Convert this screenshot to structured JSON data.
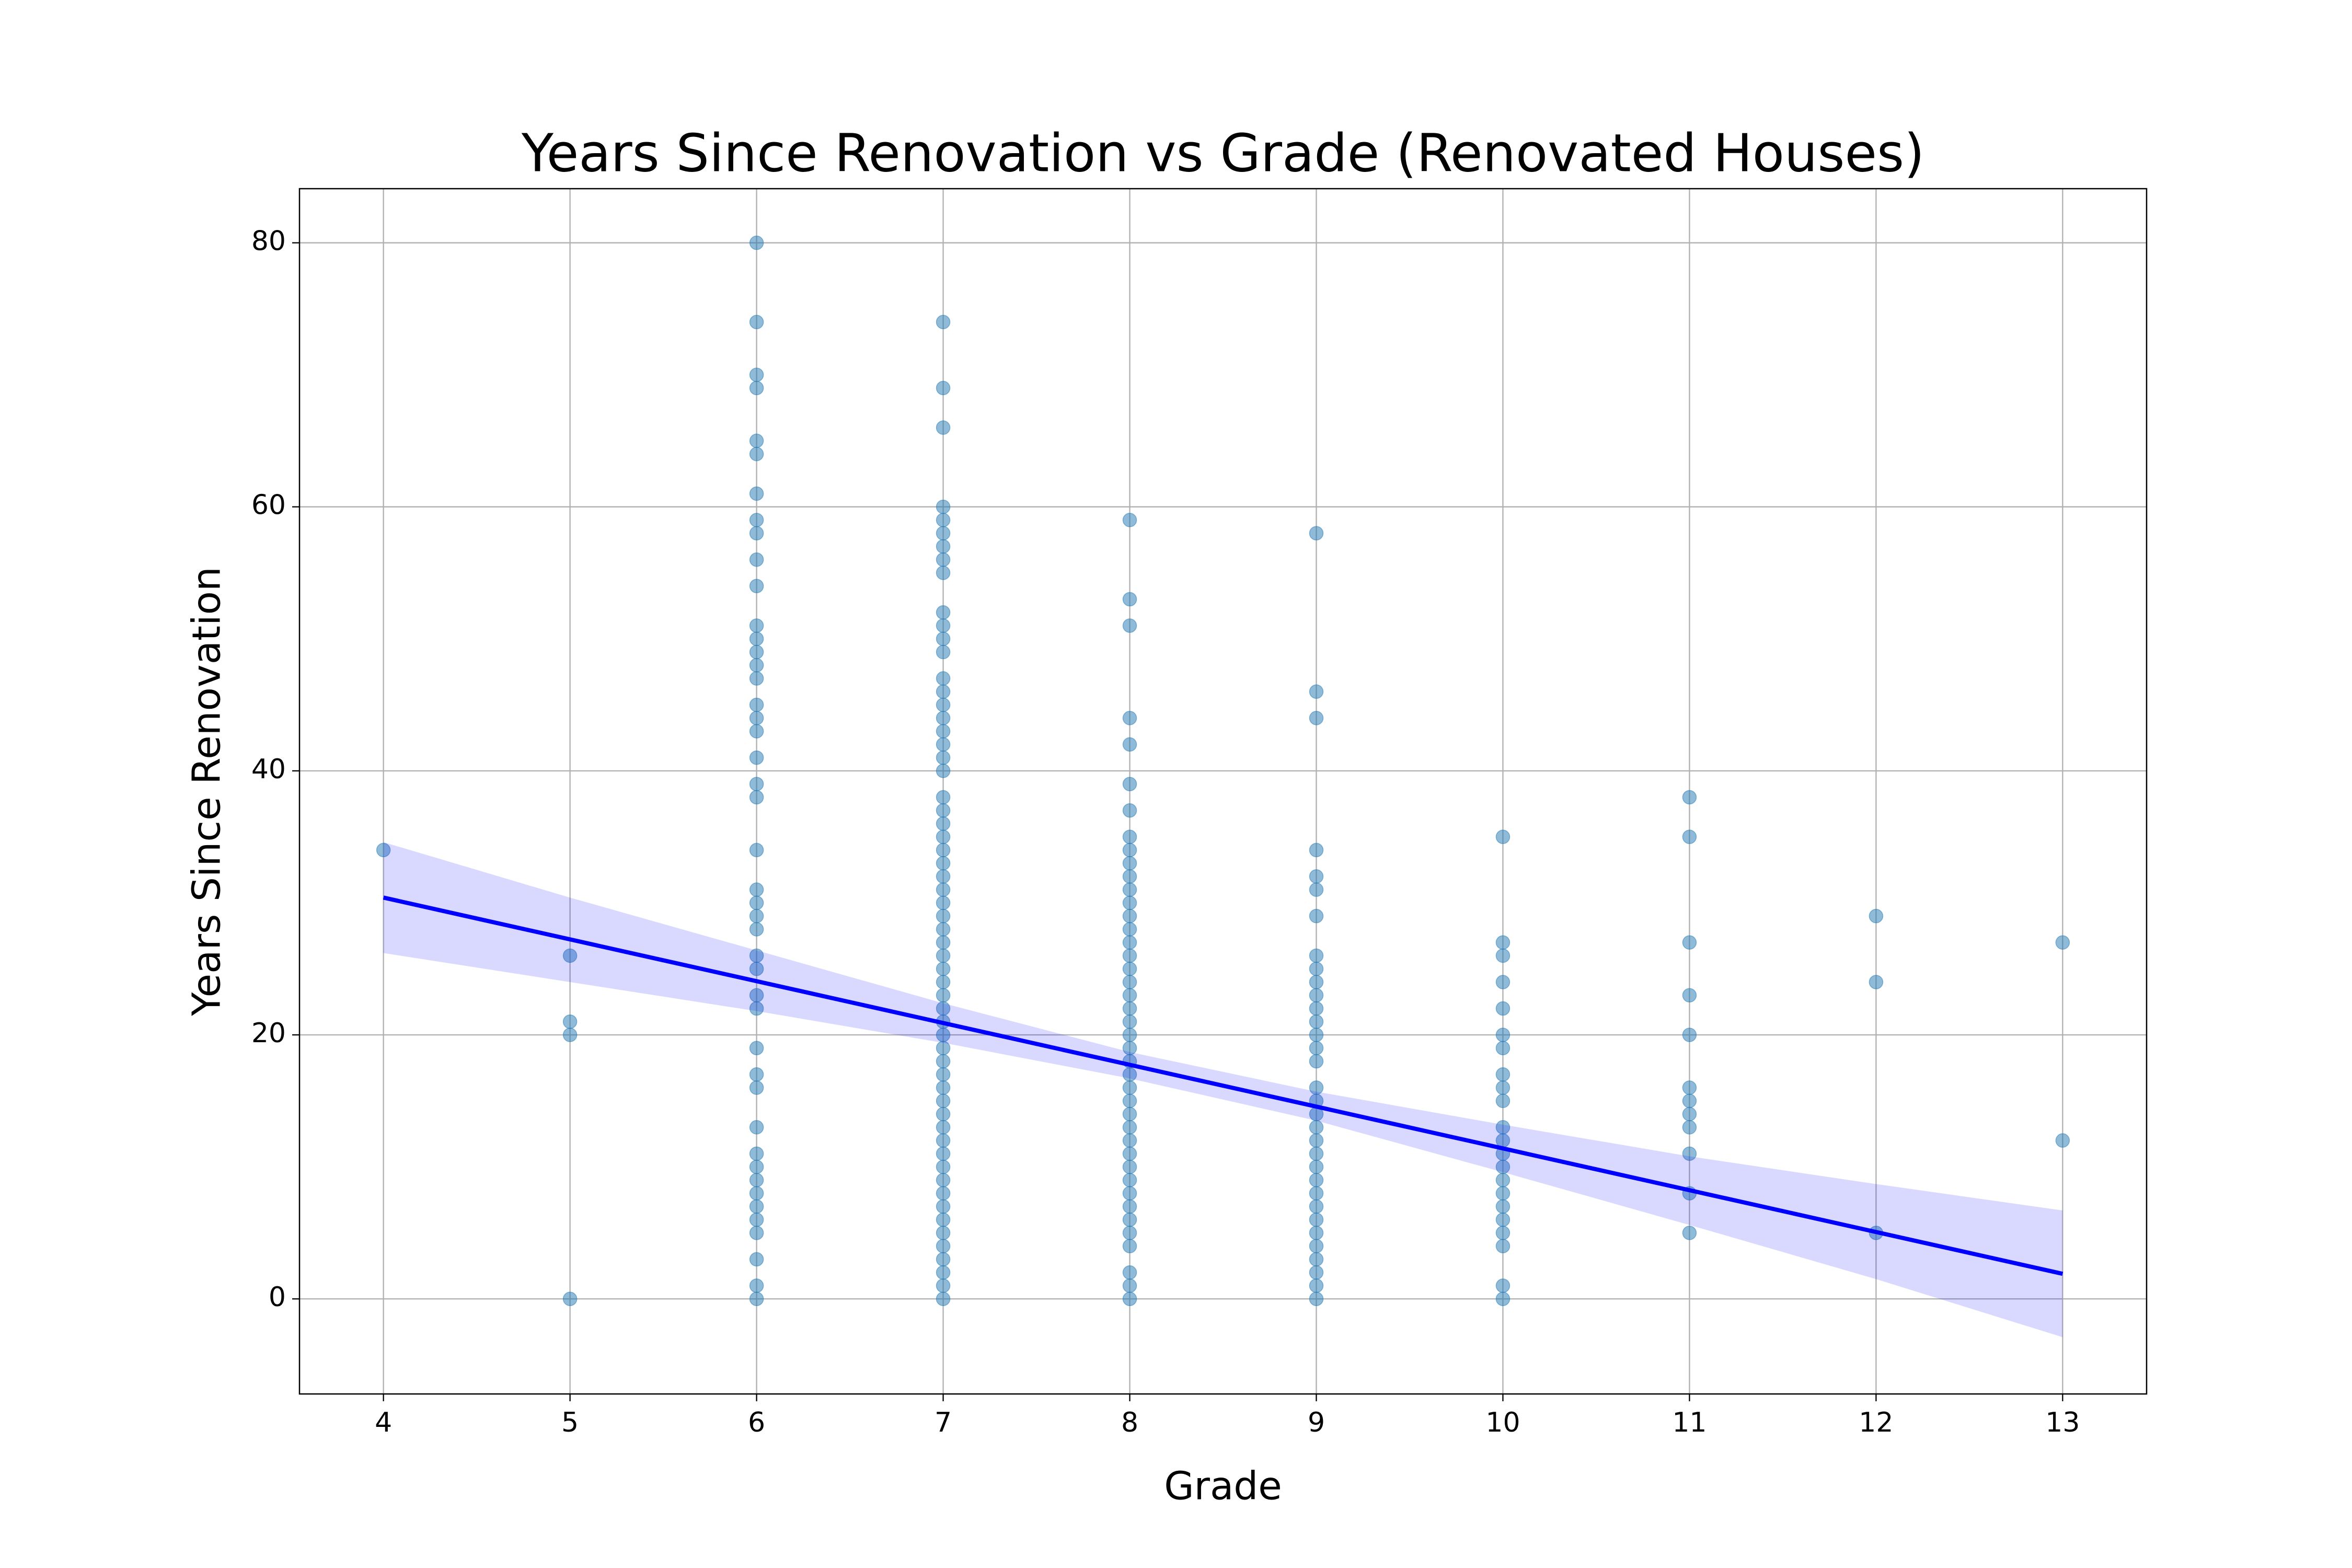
{
  "chart_data": {
    "type": "scatter",
    "title": "Years Since Renovation vs Grade (Renovated Houses)",
    "x_label": "Grade",
    "y_label": "Years Since Renovation",
    "color": "#1f77b4",
    "grid": true,
    "xlim": [
      3.55,
      13.45
    ],
    "ylim": [
      -7.2,
      84.1
    ],
    "xticks": [
      4,
      5,
      6,
      7,
      8,
      9,
      10,
      11,
      12,
      13
    ],
    "yticks": [
      0,
      20,
      40,
      60,
      80
    ],
    "x": [
      4,
      5,
      5,
      5,
      5,
      6,
      6,
      6,
      6,
      6,
      6,
      6,
      6,
      6,
      6,
      6,
      6,
      6,
      6,
      6,
      6,
      6,
      6,
      6,
      6,
      6,
      6,
      6,
      6,
      6,
      6,
      6,
      6,
      6,
      6,
      6,
      6,
      6,
      6,
      6,
      6,
      6,
      6,
      6,
      6,
      6,
      6,
      6,
      6,
      6,
      7,
      7,
      7,
      7,
      7,
      7,
      7,
      7,
      7,
      7,
      7,
      7,
      7,
      7,
      7,
      7,
      7,
      7,
      7,
      7,
      7,
      7,
      7,
      7,
      7,
      7,
      7,
      7,
      7,
      7,
      7,
      7,
      7,
      7,
      7,
      7,
      7,
      7,
      7,
      7,
      7,
      7,
      7,
      7,
      7,
      7,
      7,
      7,
      7,
      7,
      7,
      7,
      7,
      7,
      7,
      7,
      7,
      7,
      7,
      7,
      8,
      8,
      8,
      8,
      8,
      8,
      8,
      8,
      8,
      8,
      8,
      8,
      8,
      8,
      8,
      8,
      8,
      8,
      8,
      8,
      8,
      8,
      8,
      8,
      8,
      8,
      8,
      8,
      8,
      8,
      8,
      8,
      8,
      8,
      8,
      8,
      8,
      8,
      8,
      8,
      8,
      8,
      9,
      9,
      9,
      9,
      9,
      9,
      9,
      9,
      9,
      9,
      9,
      9,
      9,
      9,
      9,
      9,
      9,
      9,
      9,
      9,
      9,
      9,
      9,
      9,
      9,
      9,
      9,
      9,
      9,
      9,
      9,
      9,
      9,
      10,
      10,
      10,
      10,
      10,
      10,
      10,
      10,
      10,
      10,
      10,
      10,
      10,
      10,
      10,
      10,
      10,
      10,
      10,
      10,
      10,
      10,
      11,
      11,
      11,
      11,
      11,
      11,
      11,
      11,
      11,
      11,
      11,
      11,
      12,
      12,
      12,
      13,
      13
    ],
    "values": [
      34,
      26,
      21,
      20,
      0,
      80,
      74,
      70,
      69,
      65,
      64,
      61,
      59,
      58,
      56,
      54,
      51,
      50,
      49,
      48,
      47,
      45,
      44,
      43,
      41,
      39,
      38,
      34,
      31,
      30,
      29,
      28,
      26,
      25,
      23,
      22,
      19,
      17,
      16,
      13,
      11,
      10,
      9,
      8,
      7,
      6,
      5,
      3,
      1,
      0,
      74,
      69,
      66,
      60,
      59,
      58,
      57,
      56,
      55,
      52,
      51,
      50,
      49,
      47,
      46,
      45,
      44,
      43,
      42,
      41,
      40,
      38,
      37,
      36,
      35,
      34,
      33,
      32,
      31,
      30,
      29,
      28,
      27,
      26,
      25,
      24,
      23,
      22,
      21,
      20,
      19,
      18,
      17,
      16,
      15,
      14,
      13,
      12,
      11,
      10,
      9,
      8,
      7,
      6,
      5,
      4,
      3,
      2,
      1,
      0,
      59,
      53,
      51,
      44,
      42,
      39,
      37,
      35,
      34,
      33,
      32,
      31,
      30,
      29,
      28,
      27,
      26,
      25,
      24,
      23,
      22,
      21,
      20,
      19,
      18,
      17,
      16,
      15,
      14,
      13,
      12,
      11,
      10,
      9,
      8,
      7,
      6,
      5,
      4,
      2,
      1,
      0,
      58,
      46,
      44,
      34,
      32,
      31,
      29,
      26,
      25,
      24,
      23,
      22,
      21,
      20,
      19,
      18,
      16,
      15,
      14,
      13,
      12,
      11,
      10,
      9,
      8,
      7,
      6,
      5,
      4,
      3,
      2,
      1,
      0,
      35,
      27,
      26,
      24,
      22,
      20,
      19,
      17,
      16,
      15,
      13,
      12,
      11,
      10,
      9,
      8,
      7,
      6,
      5,
      4,
      1,
      0,
      38,
      35,
      27,
      23,
      20,
      16,
      15,
      14,
      13,
      11,
      8,
      5,
      29,
      24,
      5,
      27,
      12
    ],
    "regression": {
      "color": "#0000ff",
      "x": [
        4,
        13
      ],
      "y": [
        30.4,
        1.9
      ]
    },
    "band": {
      "color": "#0000ff",
      "x": [
        4,
        5,
        6,
        7,
        8,
        9,
        10,
        11,
        12,
        13
      ],
      "lower": [
        26.2,
        24.0,
        21.8,
        19.4,
        16.7,
        13.5,
        9.6,
        5.6,
        1.5,
        -2.9
      ],
      "upper": [
        34.6,
        30.4,
        26.4,
        22.4,
        18.7,
        15.7,
        13.2,
        10.8,
        8.7,
        6.7
      ]
    }
  }
}
